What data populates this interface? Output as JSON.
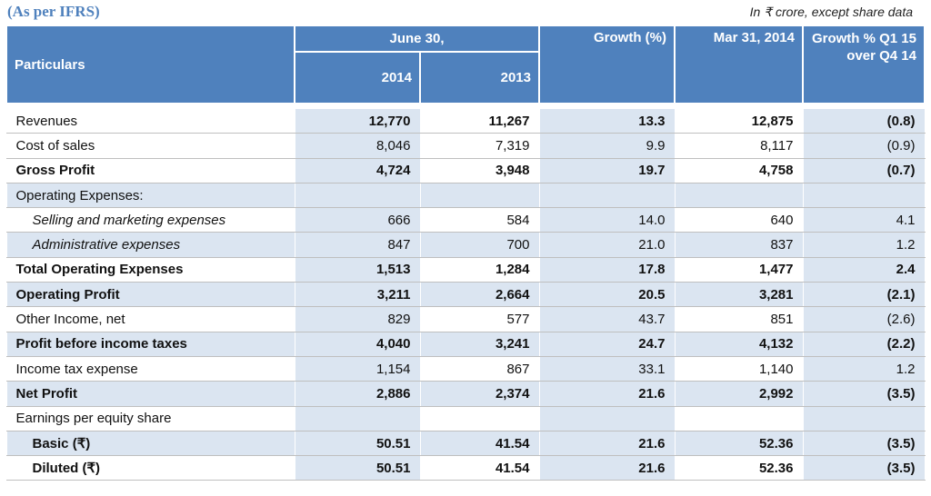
{
  "header": {
    "ifrs_note": "(As per IFRS)",
    "units_note": "In ₹ crore, except share data"
  },
  "columns": {
    "particulars": "Particulars",
    "june": "June 30,",
    "y2014": "2014",
    "y2013": "2013",
    "growth": "Growth (%)",
    "mar": "Mar 31, 2014",
    "growth_q": "Growth % Q1 15 over Q4 14"
  },
  "rows": [
    {
      "label": "Revenues",
      "v2014": "12,770",
      "v2013": "11,267",
      "growth": "13.3",
      "mar": "12,875",
      "gq": "(0.8)"
    },
    {
      "label": "Cost of sales",
      "v2014": "8,046",
      "v2013": "7,319",
      "growth": "9.9",
      "mar": "8,117",
      "gq": "(0.9)"
    },
    {
      "label": "Gross Profit",
      "v2014": "4,724",
      "v2013": "3,948",
      "growth": "19.7",
      "mar": "4,758",
      "gq": "(0.7)"
    },
    {
      "label": "Operating Expenses:"
    },
    {
      "label": "Selling and marketing expenses",
      "v2014": "666",
      "v2013": "584",
      "growth": "14.0",
      "mar": "640",
      "gq": "4.1"
    },
    {
      "label": "Administrative expenses",
      "v2014": "847",
      "v2013": "700",
      "growth": "21.0",
      "mar": "837",
      "gq": "1.2"
    },
    {
      "label": "Total Operating Expenses",
      "v2014": "1,513",
      "v2013": "1,284",
      "growth": "17.8",
      "mar": "1,477",
      "gq": "2.4"
    },
    {
      "label": "Operating Profit",
      "v2014": "3,211",
      "v2013": "2,664",
      "growth": "20.5",
      "mar": "3,281",
      "gq": "(2.1)"
    },
    {
      "label": "Other Income, net",
      "v2014": "829",
      "v2013": "577",
      "growth": "43.7",
      "mar": "851",
      "gq": "(2.6)"
    },
    {
      "label": "Profit before income taxes",
      "v2014": "4,040",
      "v2013": "3,241",
      "growth": "24.7",
      "mar": "4,132",
      "gq": "(2.2)"
    },
    {
      "label": "Income tax expense",
      "v2014": "1,154",
      "v2013": "867",
      "growth": "33.1",
      "mar": "1,140",
      "gq": "1.2"
    },
    {
      "label": "Net Profit",
      "v2014": "2,886",
      "v2013": "2,374",
      "growth": "21.6",
      "mar": "2,992",
      "gq": "(3.5)"
    },
    {
      "label": "Earnings per equity share"
    },
    {
      "label": "Basic (₹)",
      "v2014": "50.51",
      "v2013": "41.54",
      "growth": "21.6",
      "mar": "52.36",
      "gq": "(3.5)"
    },
    {
      "label": "Diluted (₹)",
      "v2014": "50.51",
      "v2013": "41.54",
      "growth": "21.6",
      "mar": "52.36",
      "gq": "(3.5)"
    }
  ]
}
